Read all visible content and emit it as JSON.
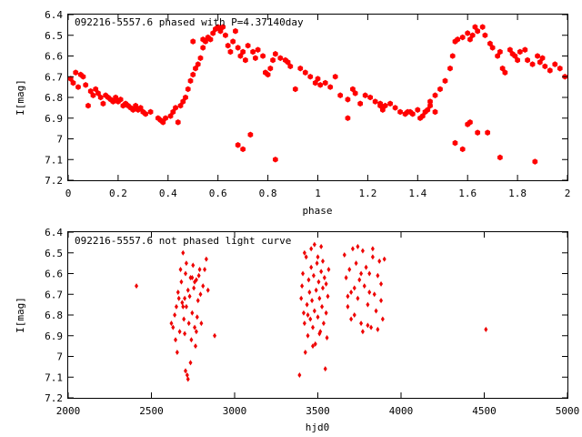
{
  "chart_data": [
    {
      "type": "scatter",
      "title": "092216-5557.6 phased with P=4.37140day",
      "xlabel": "phase",
      "ylabel": "I[mag]",
      "xlim": [
        0,
        2
      ],
      "ylim": [
        7.2,
        6.4
      ],
      "y_inverted": true,
      "grid": false,
      "marker_color": "#ff0000",
      "marker": "filled-hexagon",
      "xticks": [
        "0",
        "0.2",
        "0.4",
        "0.6",
        "0.8",
        "1",
        "1.2",
        "1.4",
        "1.6",
        "1.8",
        "2"
      ],
      "yticks": [
        "6.4",
        "6.5",
        "6.6",
        "6.7",
        "6.8",
        "6.9",
        "7",
        "7.1",
        "7.2"
      ],
      "points": [
        [
          0.01,
          6.71
        ],
        [
          0.02,
          6.73
        ],
        [
          0.03,
          6.68
        ],
        [
          0.04,
          6.75
        ],
        [
          0.05,
          6.69
        ],
        [
          0.06,
          6.7
        ],
        [
          0.07,
          6.74
        ],
        [
          0.08,
          6.84
        ],
        [
          0.09,
          6.77
        ],
        [
          0.1,
          6.79
        ],
        [
          0.11,
          6.76
        ],
        [
          0.12,
          6.78
        ],
        [
          0.13,
          6.8
        ],
        [
          0.14,
          6.83
        ],
        [
          0.15,
          6.79
        ],
        [
          0.16,
          6.8
        ],
        [
          0.17,
          6.81
        ],
        [
          0.18,
          6.82
        ],
        [
          0.19,
          6.8
        ],
        [
          0.2,
          6.82
        ],
        [
          0.21,
          6.81
        ],
        [
          0.22,
          6.84
        ],
        [
          0.23,
          6.83
        ],
        [
          0.24,
          6.84
        ],
        [
          0.25,
          6.85
        ],
        [
          0.26,
          6.86
        ],
        [
          0.27,
          6.84
        ],
        [
          0.28,
          6.86
        ],
        [
          0.29,
          6.85
        ],
        [
          0.3,
          6.87
        ],
        [
          0.31,
          6.88
        ],
        [
          0.33,
          6.87
        ],
        [
          0.36,
          6.9
        ],
        [
          0.37,
          6.91
        ],
        [
          0.38,
          6.92
        ],
        [
          0.39,
          6.9
        ],
        [
          0.41,
          6.89
        ],
        [
          0.42,
          6.87
        ],
        [
          0.43,
          6.85
        ],
        [
          0.44,
          6.92
        ],
        [
          0.45,
          6.84
        ],
        [
          0.46,
          6.82
        ],
        [
          0.47,
          6.8
        ],
        [
          0.48,
          6.76
        ],
        [
          0.49,
          6.72
        ],
        [
          0.5,
          6.69
        ],
        [
          0.51,
          6.66
        ],
        [
          0.52,
          6.64
        ],
        [
          0.53,
          6.61
        ],
        [
          0.54,
          6.56
        ],
        [
          0.55,
          6.53
        ],
        [
          0.56,
          6.51
        ],
        [
          0.57,
          6.52
        ],
        [
          0.58,
          6.49
        ],
        [
          0.59,
          6.47
        ],
        [
          0.6,
          6.46
        ],
        [
          0.61,
          6.48
        ],
        [
          0.62,
          6.46
        ],
        [
          0.63,
          6.5
        ],
        [
          0.64,
          6.55
        ],
        [
          0.65,
          6.58
        ],
        [
          0.66,
          6.53
        ],
        [
          0.67,
          6.48
        ],
        [
          0.68,
          6.56
        ],
        [
          0.69,
          6.6
        ],
        [
          0.7,
          6.58
        ],
        [
          0.71,
          6.62
        ],
        [
          0.72,
          6.55
        ],
        [
          0.74,
          6.58
        ],
        [
          0.75,
          6.61
        ],
        [
          0.76,
          6.57
        ],
        [
          0.78,
          6.6
        ],
        [
          0.79,
          6.68
        ],
        [
          0.8,
          6.69
        ],
        [
          0.81,
          6.66
        ],
        [
          0.82,
          6.62
        ],
        [
          0.83,
          6.59
        ],
        [
          0.85,
          6.61
        ],
        [
          0.87,
          6.62
        ],
        [
          0.88,
          6.63
        ],
        [
          0.89,
          6.65
        ],
        [
          0.91,
          6.76
        ],
        [
          0.93,
          6.66
        ],
        [
          0.95,
          6.68
        ],
        [
          0.97,
          6.7
        ],
        [
          0.99,
          6.73
        ],
        [
          1.0,
          6.71
        ],
        [
          0.68,
          7.03
        ],
        [
          0.7,
          7.05
        ],
        [
          0.73,
          6.98
        ],
        [
          0.83,
          7.1
        ],
        [
          0.5,
          6.53
        ],
        [
          0.54,
          6.52
        ],
        [
          1.01,
          6.74
        ],
        [
          1.03,
          6.73
        ],
        [
          1.05,
          6.75
        ],
        [
          1.07,
          6.7
        ],
        [
          1.09,
          6.79
        ],
        [
          1.12,
          6.9
        ],
        [
          1.14,
          6.76
        ],
        [
          1.15,
          6.78
        ],
        [
          1.17,
          6.83
        ],
        [
          1.19,
          6.79
        ],
        [
          1.21,
          6.8
        ],
        [
          1.23,
          6.82
        ],
        [
          1.25,
          6.84
        ],
        [
          1.26,
          6.86
        ],
        [
          1.27,
          6.84
        ],
        [
          1.29,
          6.83
        ],
        [
          1.31,
          6.85
        ],
        [
          1.33,
          6.87
        ],
        [
          1.35,
          6.88
        ],
        [
          1.37,
          6.87
        ],
        [
          1.38,
          6.88
        ],
        [
          1.4,
          6.86
        ],
        [
          1.41,
          6.9
        ],
        [
          1.42,
          6.89
        ],
        [
          1.43,
          6.87
        ],
        [
          1.45,
          6.82
        ],
        [
          1.47,
          6.79
        ],
        [
          1.49,
          6.76
        ],
        [
          1.51,
          6.72
        ],
        [
          1.53,
          6.66
        ],
        [
          1.54,
          6.6
        ],
        [
          1.55,
          6.53
        ],
        [
          1.56,
          6.52
        ],
        [
          1.58,
          6.51
        ],
        [
          1.6,
          6.49
        ],
        [
          1.61,
          6.52
        ],
        [
          1.62,
          6.5
        ],
        [
          1.63,
          6.46
        ],
        [
          1.64,
          6.48
        ],
        [
          1.66,
          6.46
        ],
        [
          1.67,
          6.5
        ],
        [
          1.69,
          6.54
        ],
        [
          1.7,
          6.56
        ],
        [
          1.72,
          6.6
        ],
        [
          1.73,
          6.58
        ],
        [
          1.74,
          6.66
        ],
        [
          1.75,
          6.68
        ],
        [
          1.77,
          6.57
        ],
        [
          1.78,
          6.59
        ],
        [
          1.79,
          6.6
        ],
        [
          1.8,
          6.62
        ],
        [
          1.81,
          6.58
        ],
        [
          1.83,
          6.57
        ],
        [
          1.84,
          6.62
        ],
        [
          1.86,
          6.64
        ],
        [
          1.88,
          6.6
        ],
        [
          1.89,
          6.63
        ],
        [
          1.9,
          6.61
        ],
        [
          1.91,
          6.65
        ],
        [
          1.93,
          6.67
        ],
        [
          1.95,
          6.64
        ],
        [
          1.97,
          6.66
        ],
        [
          1.99,
          6.7
        ],
        [
          1.55,
          7.02
        ],
        [
          1.58,
          7.05
        ],
        [
          1.6,
          6.93
        ],
        [
          1.64,
          6.97
        ],
        [
          1.68,
          6.97
        ],
        [
          1.73,
          7.09
        ],
        [
          1.87,
          7.11
        ],
        [
          1.61,
          6.92
        ],
        [
          1.12,
          6.81
        ],
        [
          1.45,
          6.84
        ],
        [
          1.36,
          6.87
        ],
        [
          1.25,
          6.83
        ],
        [
          1.47,
          6.87
        ],
        [
          1.44,
          6.86
        ]
      ]
    },
    {
      "type": "scatter",
      "title": "092216-5557.6 not phased light curve",
      "xlabel": "hjd0",
      "ylabel": "I[mag]",
      "xlim": [
        2000,
        5000
      ],
      "ylim": [
        7.2,
        6.4
      ],
      "y_inverted": true,
      "grid": false,
      "marker_color": "#ee0000",
      "marker": "filled-diamond",
      "xticks": [
        "2000",
        "2500",
        "3000",
        "3500",
        "4000",
        "4500",
        "5000"
      ],
      "yticks": [
        "6.4",
        "6.5",
        "6.6",
        "6.7",
        "6.8",
        "6.9",
        "7",
        "7.1",
        "7.2"
      ],
      "points": [
        [
          2410,
          6.66
        ],
        [
          2620,
          6.84
        ],
        [
          2630,
          6.86
        ],
        [
          2640,
          6.8
        ],
        [
          2645,
          6.92
        ],
        [
          2650,
          6.76
        ],
        [
          2655,
          6.98
        ],
        [
          2660,
          6.69
        ],
        [
          2665,
          6.72
        ],
        [
          2670,
          6.88
        ],
        [
          2675,
          6.58
        ],
        [
          2680,
          6.64
        ],
        [
          2685,
          6.74
        ],
        [
          2690,
          6.5
        ],
        [
          2695,
          6.82
        ],
        [
          2700,
          6.89
        ],
        [
          2705,
          6.6
        ],
        [
          2710,
          6.76
        ],
        [
          2715,
          7.09
        ],
        [
          2720,
          6.68
        ],
        [
          2725,
          6.84
        ],
        [
          2730,
          6.71
        ],
        [
          2735,
          6.62
        ],
        [
          2740,
          6.92
        ],
        [
          2745,
          6.79
        ],
        [
          2750,
          6.56
        ],
        [
          2755,
          6.67
        ],
        [
          2760,
          6.86
        ],
        [
          2765,
          6.95
        ],
        [
          2770,
          6.63
        ],
        [
          2775,
          6.81
        ],
        [
          2780,
          6.73
        ],
        [
          2785,
          6.61
        ],
        [
          2790,
          6.58
        ],
        [
          2795,
          6.7
        ],
        [
          2800,
          6.84
        ],
        [
          2810,
          6.66
        ],
        [
          2820,
          6.58
        ],
        [
          2830,
          6.53
        ],
        [
          2840,
          6.68
        ],
        [
          2880,
          6.9
        ],
        [
          2690,
          6.76
        ],
        [
          2700,
          6.72
        ],
        [
          2705,
          7.07
        ],
        [
          2710,
          6.55
        ],
        [
          2720,
          7.11
        ],
        [
          2735,
          7.03
        ],
        [
          2745,
          6.62
        ],
        [
          2760,
          6.64
        ],
        [
          2770,
          6.88
        ],
        [
          3390,
          7.09
        ],
        [
          3400,
          6.72
        ],
        [
          3405,
          6.66
        ],
        [
          3410,
          6.6
        ],
        [
          3415,
          6.79
        ],
        [
          3420,
          6.84
        ],
        [
          3425,
          6.98
        ],
        [
          3430,
          6.52
        ],
        [
          3435,
          6.75
        ],
        [
          3440,
          6.9
        ],
        [
          3445,
          6.63
        ],
        [
          3450,
          6.69
        ],
        [
          3455,
          6.82
        ],
        [
          3460,
          6.57
        ],
        [
          3465,
          6.73
        ],
        [
          3470,
          6.86
        ],
        [
          3475,
          6.61
        ],
        [
          3480,
          6.78
        ],
        [
          3485,
          6.94
        ],
        [
          3490,
          6.68
        ],
        [
          3495,
          6.55
        ],
        [
          3500,
          6.81
        ],
        [
          3505,
          6.64
        ],
        [
          3510,
          6.72
        ],
        [
          3515,
          6.88
        ],
        [
          3520,
          6.59
        ],
        [
          3525,
          6.76
        ],
        [
          3530,
          6.67
        ],
        [
          3535,
          6.84
        ],
        [
          3540,
          6.62
        ],
        [
          3545,
          7.06
        ],
        [
          3550,
          6.79
        ],
        [
          3555,
          6.91
        ],
        [
          3560,
          6.71
        ],
        [
          3565,
          6.58
        ],
        [
          3420,
          6.5
        ],
        [
          3460,
          6.48
        ],
        [
          3480,
          6.46
        ],
        [
          3500,
          6.52
        ],
        [
          3520,
          6.47
        ],
        [
          3530,
          6.54
        ],
        [
          3440,
          6.8
        ],
        [
          3470,
          6.95
        ],
        [
          3510,
          6.89
        ],
        [
          3550,
          6.65
        ],
        [
          3660,
          6.51
        ],
        [
          3670,
          6.62
        ],
        [
          3680,
          6.76
        ],
        [
          3690,
          6.58
        ],
        [
          3700,
          6.69
        ],
        [
          3710,
          6.48
        ],
        [
          3720,
          6.8
        ],
        [
          3730,
          6.55
        ],
        [
          3740,
          6.72
        ],
        [
          3750,
          6.63
        ],
        [
          3760,
          6.84
        ],
        [
          3770,
          6.49
        ],
        [
          3780,
          6.66
        ],
        [
          3790,
          6.57
        ],
        [
          3800,
          6.75
        ],
        [
          3810,
          6.6
        ],
        [
          3820,
          6.86
        ],
        [
          3830,
          6.52
        ],
        [
          3840,
          6.7
        ],
        [
          3850,
          6.78
        ],
        [
          3860,
          6.61
        ],
        [
          3870,
          6.54
        ],
        [
          3880,
          6.73
        ],
        [
          3890,
          6.82
        ],
        [
          3900,
          6.53
        ],
        [
          3700,
          6.82
        ],
        [
          3740,
          6.47
        ],
        [
          3770,
          6.88
        ],
        [
          3800,
          6.85
        ],
        [
          3830,
          6.48
        ],
        [
          3860,
          6.87
        ],
        [
          3760,
          6.6
        ],
        [
          3720,
          6.67
        ],
        [
          3680,
          6.71
        ],
        [
          3880,
          6.65
        ],
        [
          3810,
          6.69
        ],
        [
          4510,
          6.87
        ]
      ]
    }
  ]
}
